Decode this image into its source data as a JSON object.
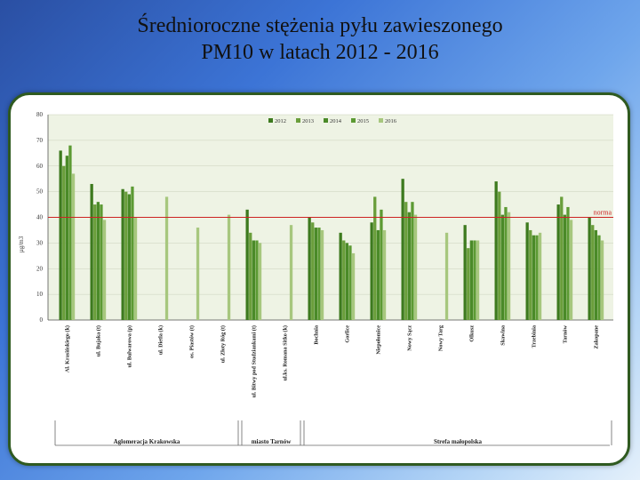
{
  "slide": {
    "title_line1": "Średnioroczne stężenia pyłu zawieszonego",
    "title_line2": "PM10 w latach 2012 - 2016"
  },
  "colors": {
    "plot_bg": "#eef3e4",
    "norma_line": "#cc2222",
    "series": [
      "#3d7a1e",
      "#6a9e3b",
      "#4a8a28",
      "#5c9a33",
      "#a7c77e"
    ]
  },
  "chart_data": {
    "type": "bar",
    "title": "",
    "ylabel": "µg/m3",
    "ylim": [
      0,
      80
    ],
    "y_ticks": [
      0,
      10,
      20,
      30,
      40,
      50,
      60,
      70,
      80
    ],
    "grid": true,
    "legend_position": "top-right",
    "norma": {
      "value": 40,
      "label": "norma"
    },
    "categories": [
      "Al. Krasińskiego (k)",
      "ul. Bujaka (t)",
      "ul. Bulwarowa (p)",
      "ul. Dietla (k)",
      "os. Piastów (t)",
      "ul. Złoty Róg (t)",
      "ul. Bitwy pod Studziankami (t)",
      "ul.ks. Romana Sitko (k)",
      "Bochnia",
      "Gorlice",
      "Niepołomice",
      "Nowy Sącz",
      "Nowy Targ",
      "Olkusz",
      "Skawina",
      "Trzebinia",
      "Tarnów",
      "Zakopane"
    ],
    "series": [
      {
        "name": "2012",
        "values": [
          66,
          53,
          51,
          null,
          null,
          null,
          43,
          null,
          40,
          34,
          38,
          55,
          null,
          37,
          54,
          38,
          45,
          40
        ]
      },
      {
        "name": "2013",
        "values": [
          60,
          45,
          50,
          null,
          null,
          null,
          34,
          null,
          38,
          31,
          48,
          46,
          null,
          28,
          50,
          35,
          48,
          37
        ]
      },
      {
        "name": "2014",
        "values": [
          64,
          46,
          49,
          null,
          null,
          null,
          31,
          null,
          36,
          30,
          35,
          42,
          null,
          31,
          41,
          33,
          41,
          35
        ]
      },
      {
        "name": "2015",
        "values": [
          68,
          45,
          52,
          null,
          null,
          null,
          31,
          null,
          36,
          29,
          43,
          46,
          null,
          31,
          44,
          33,
          44,
          33
        ]
      },
      {
        "name": "2016",
        "values": [
          57,
          39,
          40,
          48,
          36,
          41,
          30,
          37,
          35,
          26,
          35,
          41,
          34,
          31,
          42,
          34,
          39,
          31
        ]
      }
    ],
    "groups": [
      {
        "label": "Aglomeracja Krakowska",
        "from": 0,
        "to": 5
      },
      {
        "label": "miasto Tarnów",
        "from": 6,
        "to": 7
      },
      {
        "label": "Strefa małopolska",
        "from": 8,
        "to": 17
      }
    ]
  }
}
